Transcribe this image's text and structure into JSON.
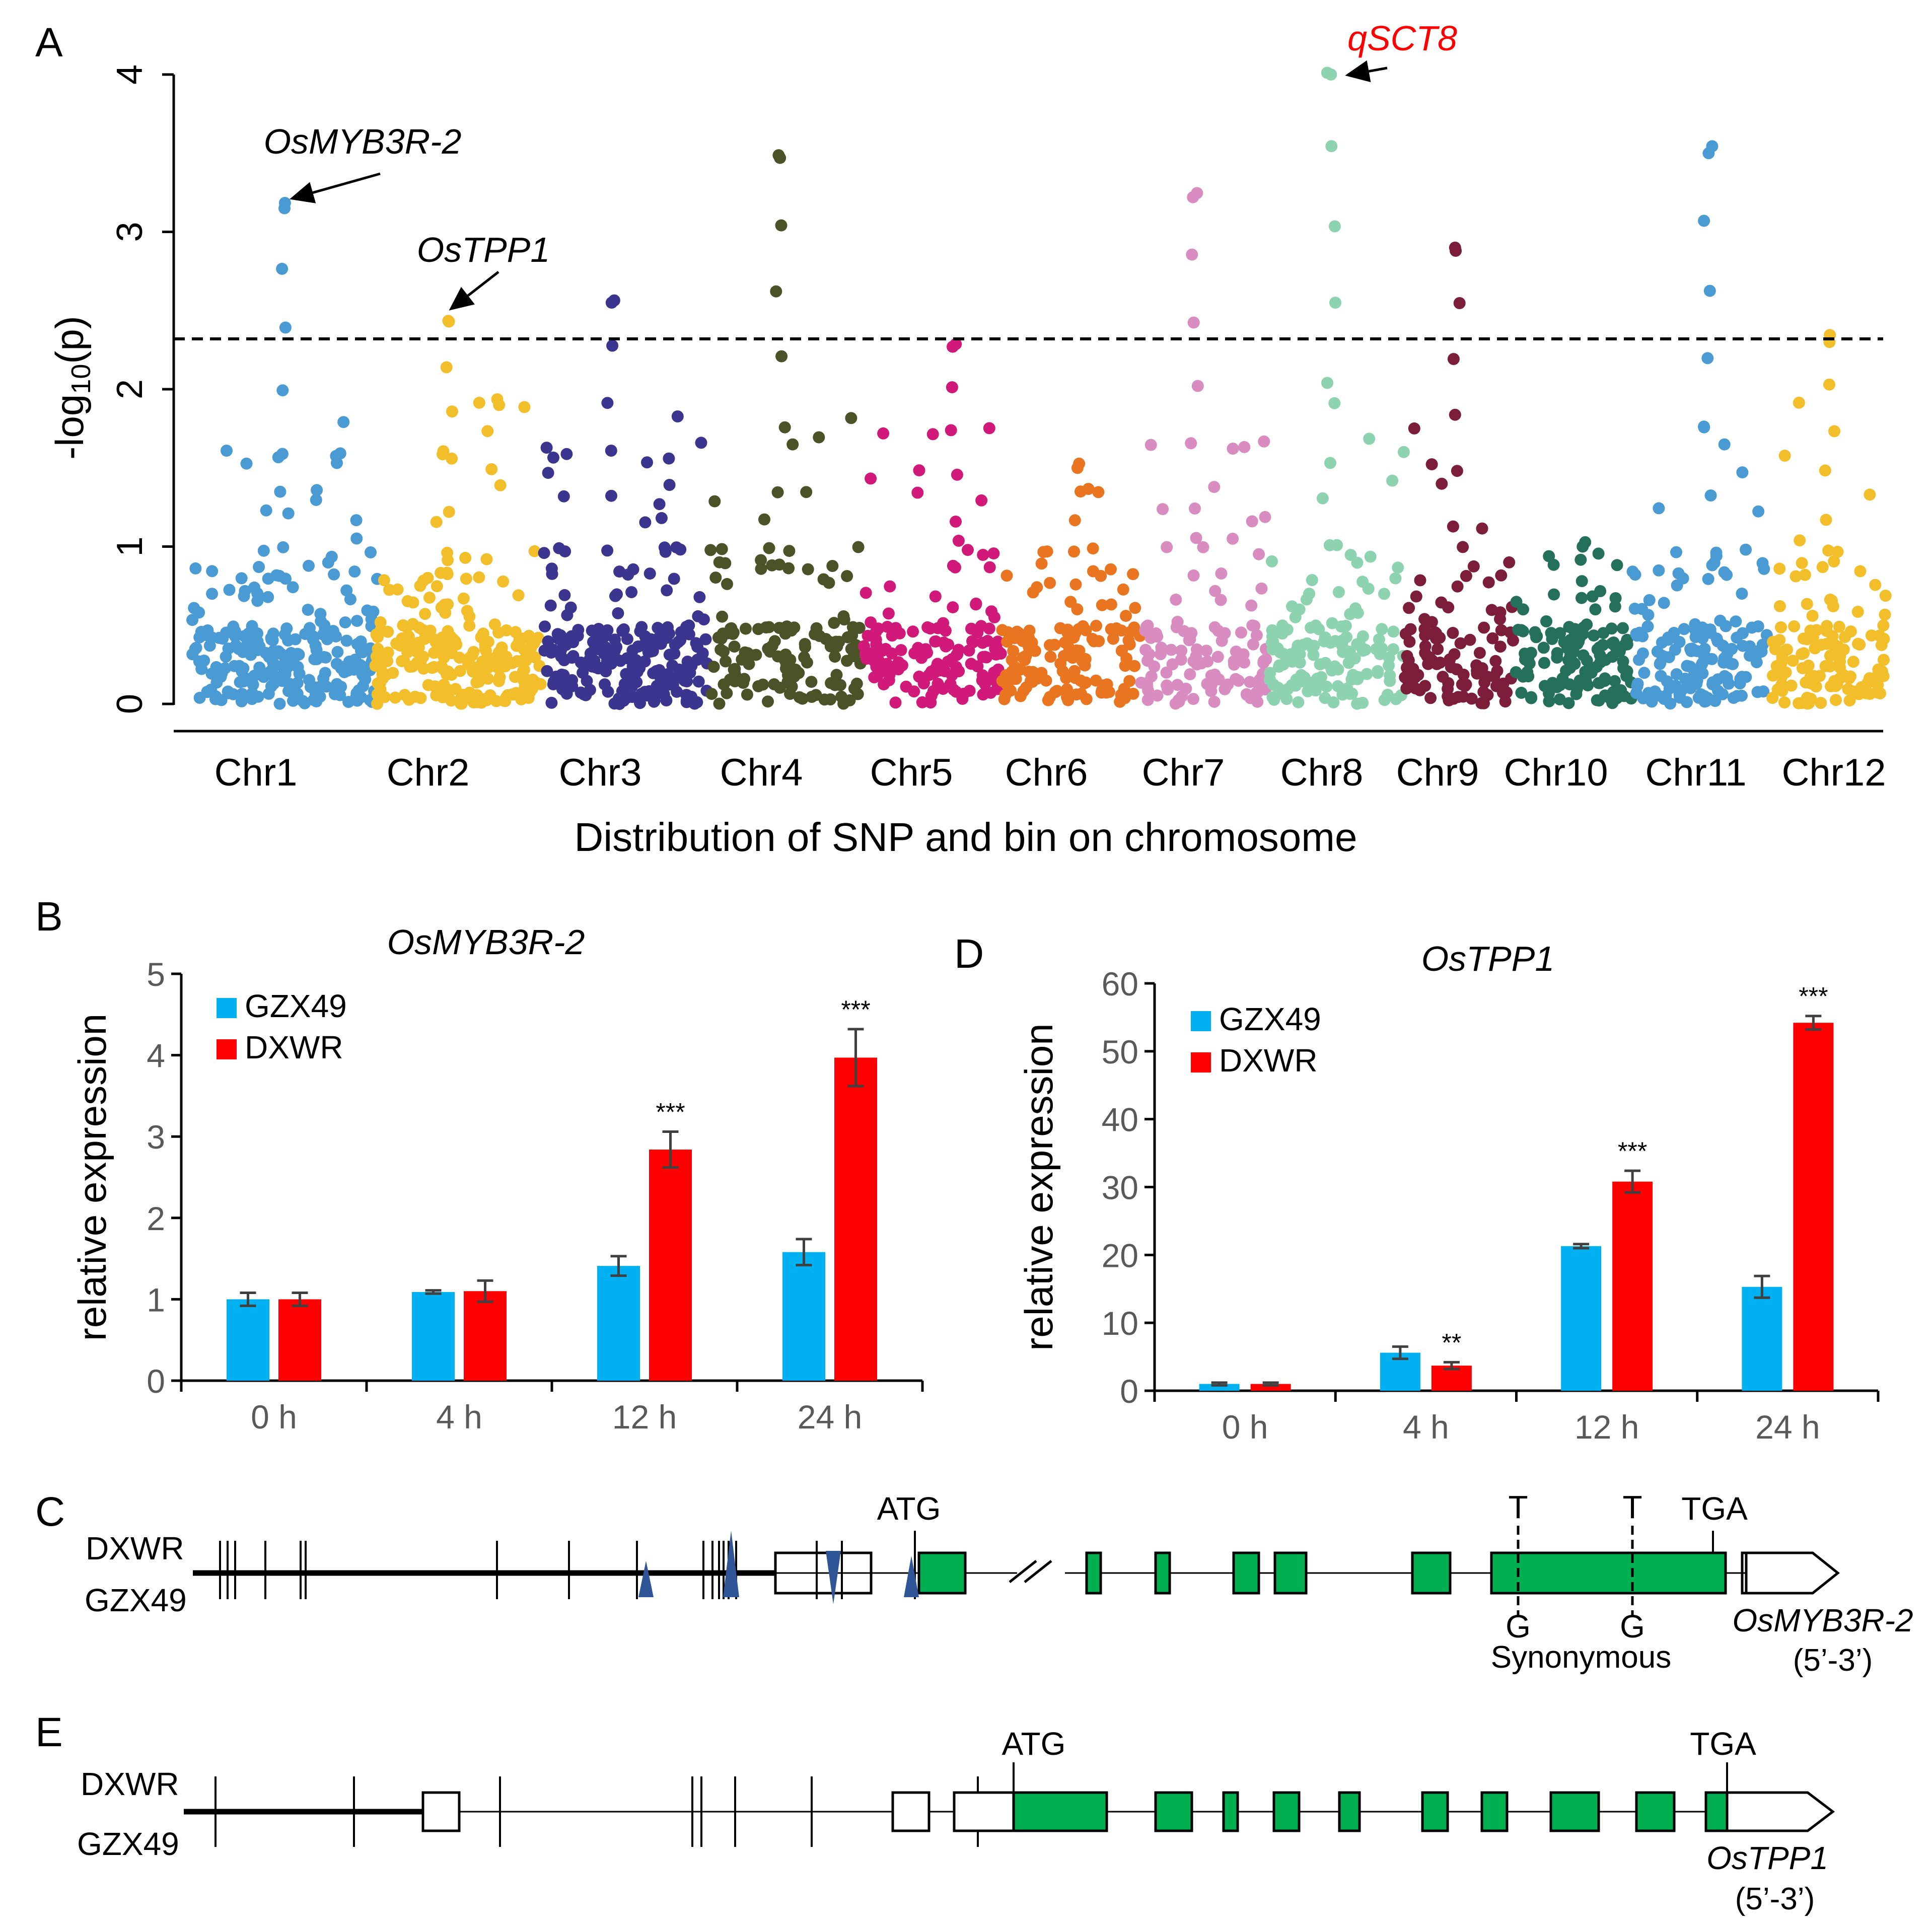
{
  "panels": {
    "A": {
      "letter": "A"
    },
    "B": {
      "letter": "B"
    },
    "C": {
      "letter": "C"
    },
    "D": {
      "letter": "D"
    },
    "E": {
      "letter": "E"
    }
  },
  "chart_data": [
    {
      "id": "A",
      "type": "scatter",
      "subtype": "manhattan",
      "title": "",
      "xlabel": "Distribution of SNP and bin on chromosome",
      "ylabel_main": "-log",
      "ylabel_sub": "10",
      "ylabel_tail": "(p)",
      "ylim": [
        0,
        4
      ],
      "yticks": [
        "0",
        "1",
        "2",
        "3",
        "4"
      ],
      "threshold": 2.32,
      "chromosomes": [
        {
          "name": "Chr1",
          "color": "#4a9ad4",
          "peak": 3.15,
          "count": 240
        },
        {
          "name": "Chr2",
          "color": "#f2bf2a",
          "peak": 2.43,
          "count": 230
        },
        {
          "name": "Chr3",
          "color": "#3c3590",
          "peak": 2.55,
          "count": 230
        },
        {
          "name": "Chr4",
          "color": "#4b5228",
          "peak": 3.47,
          "count": 130
        },
        {
          "name": "Chr5",
          "color": "#d1197a",
          "peak": 2.27,
          "count": 140
        },
        {
          "name": "Chr6",
          "color": "#ea7520",
          "peak": 1.5,
          "count": 130
        },
        {
          "name": "Chr7",
          "color": "#d88cc0",
          "peak": 3.22,
          "count": 110
        },
        {
          "name": "Chr8",
          "color": "#8dd3b0",
          "peak": 4.0,
          "count": 140
        },
        {
          "name": "Chr9",
          "color": "#7c1d3a",
          "peak": 2.88,
          "count": 100
        },
        {
          "name": "Chr10",
          "color": "#25705a",
          "peak": 1.0,
          "count": 120
        },
        {
          "name": "Chr11",
          "color": "#4a9ad4",
          "peak": 3.5,
          "count": 150
        },
        {
          "name": "Chr12",
          "color": "#f2bf2a",
          "peak": 2.3,
          "count": 120
        }
      ],
      "annotations": [
        {
          "label": "OsMYB3R-2",
          "chromosome": "Chr1",
          "y": 3.15,
          "color": "#000000"
        },
        {
          "label": "OsTPP1",
          "chromosome": "Chr2",
          "y": 2.43,
          "color": "#000000"
        },
        {
          "label": "qSCT8",
          "chromosome": "Chr8",
          "y": 4.0,
          "color": "#ff0000"
        }
      ]
    },
    {
      "id": "B",
      "type": "bar",
      "title": "OsMYB3R-2",
      "xlabel": "",
      "ylabel": "relative expression",
      "ylim": [
        0,
        5
      ],
      "yticks": [
        "0",
        "1",
        "2",
        "3",
        "4",
        "5"
      ],
      "categories": [
        "0 h",
        "4 h",
        "12 h",
        "24 h"
      ],
      "series": [
        {
          "name": "GZX49",
          "color": "#00b0f0",
          "values": [
            1.0,
            1.09,
            1.41,
            1.58
          ],
          "errors": [
            0.08,
            0.02,
            0.12,
            0.16
          ]
        },
        {
          "name": "DXWR",
          "color": "#ff0000",
          "values": [
            1.0,
            1.1,
            2.84,
            3.97
          ],
          "errors": [
            0.08,
            0.13,
            0.22,
            0.35
          ]
        }
      ],
      "significance": [
        {
          "category": "12 h",
          "series": "DXWR",
          "label": "***"
        },
        {
          "category": "24 h",
          "series": "DXWR",
          "label": "***"
        }
      ]
    },
    {
      "id": "D",
      "type": "bar",
      "title": "OsTPP1",
      "xlabel": "",
      "ylabel": "relative expression",
      "ylim": [
        0,
        60
      ],
      "yticks": [
        "0",
        "10",
        "20",
        "30",
        "40",
        "50",
        "60"
      ],
      "categories": [
        "0 h",
        "4 h",
        "12 h",
        "24 h"
      ],
      "series": [
        {
          "name": "GZX49",
          "color": "#00b0f0",
          "values": [
            1.0,
            5.6,
            21.3,
            15.3
          ],
          "errors": [
            0.2,
            0.9,
            0.3,
            1.6
          ]
        },
        {
          "name": "DXWR",
          "color": "#ff0000",
          "values": [
            1.0,
            3.7,
            30.8,
            54.2
          ],
          "errors": [
            0.2,
            0.5,
            1.6,
            1.0
          ]
        }
      ],
      "significance": [
        {
          "category": "4 h",
          "series": "DXWR",
          "label": "**"
        },
        {
          "category": "12 h",
          "series": "DXWR",
          "label": "***"
        },
        {
          "category": "24 h",
          "series": "DXWR",
          "label": "***"
        }
      ]
    }
  ],
  "gene_C": {
    "top_label": "DXWR",
    "bottom_label": "GZX49",
    "start_codon": "ATG",
    "stop_codon": "TGA",
    "snp1_top": "T",
    "snp1_bottom": "G",
    "snp2_top": "T",
    "snp2_bottom": "G",
    "snp_effect": "Synonymous",
    "gene_name": "OsMYB3R-2",
    "orientation": "(5’-3’)",
    "exon_color": "#00b050",
    "indel_color": "#2f5597"
  },
  "gene_E": {
    "top_label": "DXWR",
    "bottom_label": "GZX49",
    "start_codon": "ATG",
    "stop_codon": "TGA",
    "gene_name": "OsTPP1",
    "orientation": "(5’-3’)",
    "exon_color": "#00b050"
  }
}
